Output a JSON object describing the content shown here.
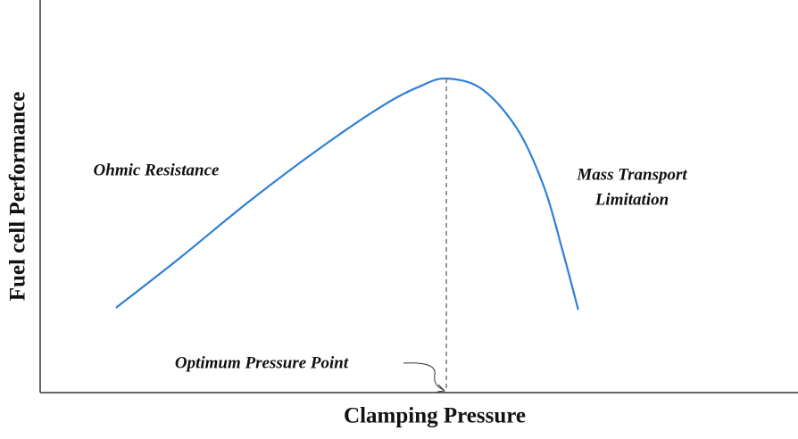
{
  "chart_data": {
    "type": "line",
    "x_label": "Clamping Pressure",
    "y_label": "Fuel cell Performance",
    "x": [
      10.0,
      18.3,
      27.7,
      37.1,
      45.3,
      50.1,
      53.6,
      58.3,
      63.0,
      66.5,
      68.9,
      71.0
    ],
    "y": [
      21.6,
      34.1,
      48.9,
      62.5,
      73.2,
      78.0,
      80.0,
      77.3,
      67.0,
      52.3,
      36.4,
      21.1
    ],
    "color": "#2f7fd8",
    "xlim": [
      0,
      100
    ],
    "ylim": [
      0,
      100
    ],
    "vline_x": 53.6,
    "annotations": {
      "left": "Ohmic Resistance",
      "right": [
        "Mass Transport",
        "Limitation"
      ],
      "optimum": "Optimum Pressure Point"
    }
  }
}
